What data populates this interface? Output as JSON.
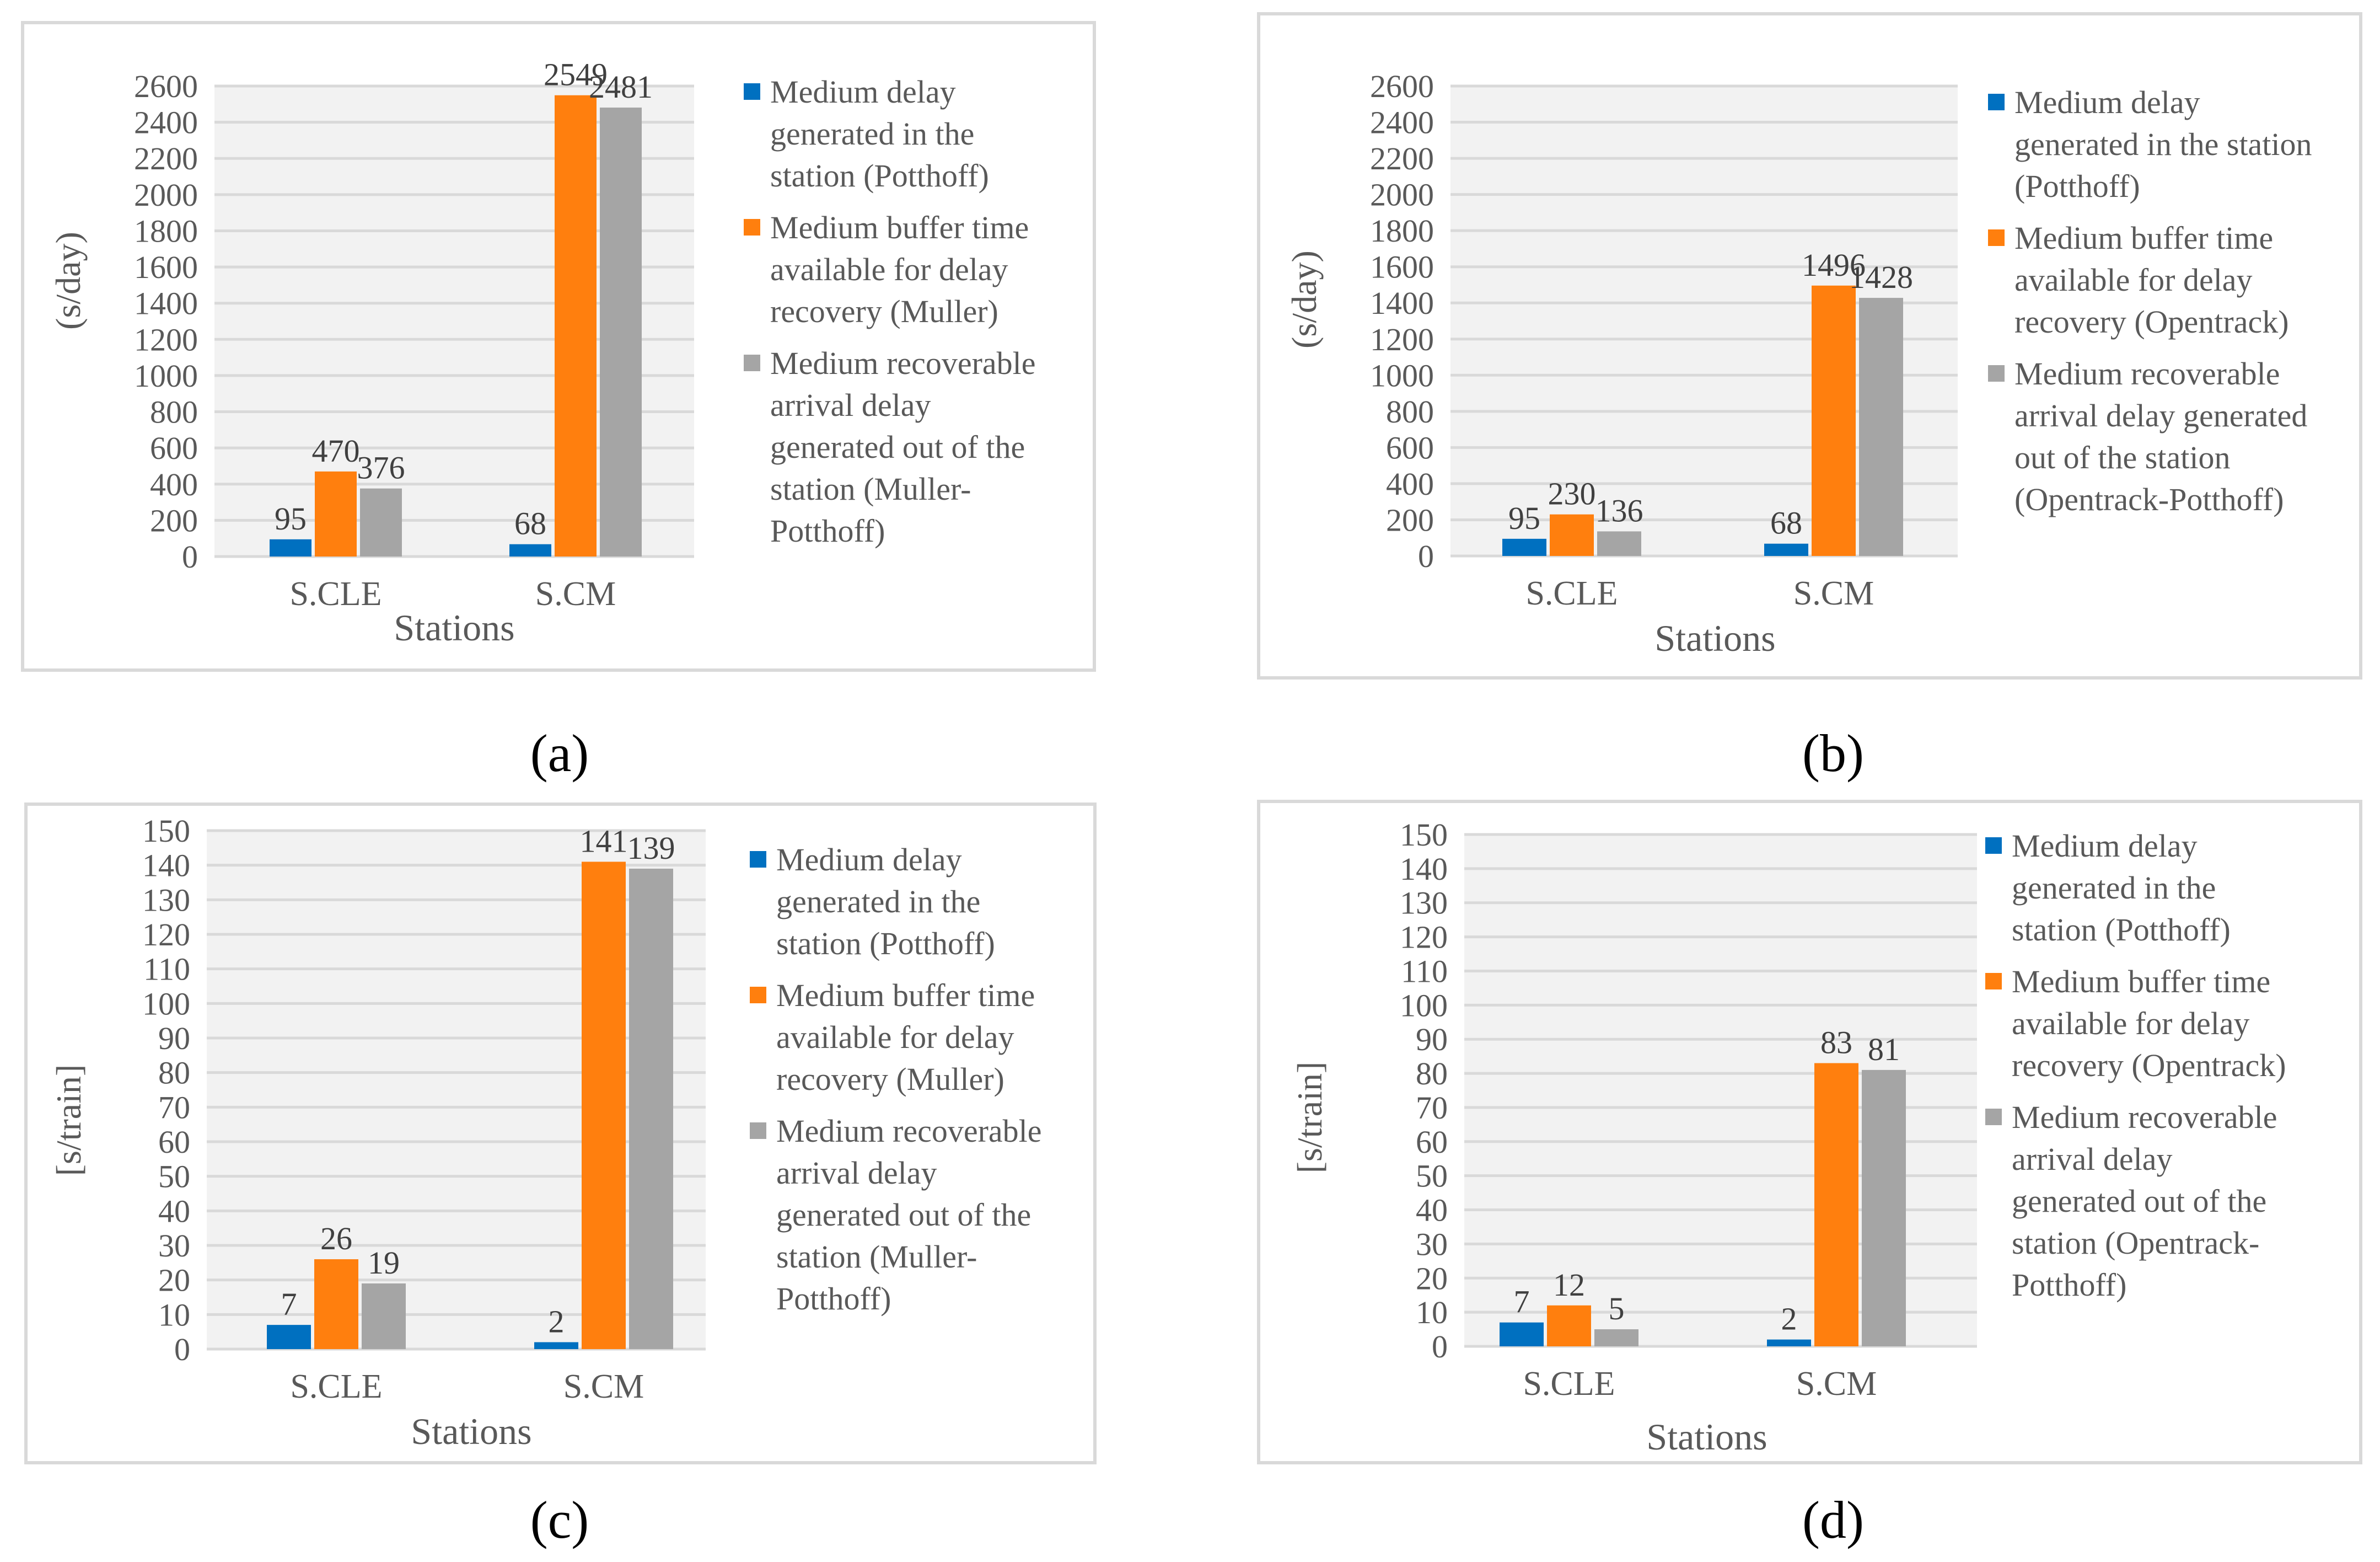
{
  "colors": {
    "series_blue": "#0070c0",
    "series_orange": "#ff7f0e",
    "series_gray": "#a5a5a5",
    "grid": "#d9d9d9",
    "plot_bg": "#f2f2f2"
  },
  "charts": [
    {
      "caption": "(a)",
      "chart_data": {
        "type": "bar",
        "categories": [
          "S.CLE",
          "S.CM"
        ],
        "xlabel": "Stations",
        "ylabel": "(s/day)",
        "ylim": [
          0,
          2600
        ],
        "yticks": [
          "0",
          "200",
          "400",
          "600",
          "800",
          "1000",
          "1200",
          "1400",
          "1600",
          "1800",
          "2000",
          "2200",
          "2400",
          "2600"
        ],
        "grid": true,
        "legend_position": "right",
        "series": [
          {
            "name": "Medium delay generated in the station (Potthoff)",
            "legend_lines": [
              "Medium delay",
              "generated in the",
              "station (Potthoff)"
            ],
            "values": [
              95,
              68
            ]
          },
          {
            "name": "Medium buffer time available for delay recovery (Muller)",
            "legend_lines": [
              "Medium buffer time",
              "available for delay",
              "recovery (Muller)"
            ],
            "values": [
              470,
              2549
            ]
          },
          {
            "name": "Medium recoverable arrival delay generated out of the station (Muller-Potthoff)",
            "legend_lines": [
              "Medium recoverable",
              "arrival delay",
              "generated out of the",
              "station (Muller-",
              "Potthoff)"
            ],
            "values": [
              376,
              2481
            ]
          }
        ]
      }
    },
    {
      "caption": "(b)",
      "chart_data": {
        "type": "bar",
        "categories": [
          "S.CLE",
          "S.CM"
        ],
        "xlabel": "Stations",
        "ylabel": "(s/day)",
        "ylim": [
          0,
          2600
        ],
        "yticks": [
          "0",
          "200",
          "400",
          "600",
          "800",
          "1000",
          "1200",
          "1400",
          "1600",
          "1800",
          "2000",
          "2200",
          "2400",
          "2600"
        ],
        "grid": true,
        "legend_position": "right",
        "series": [
          {
            "name": "Medium delay generated in the station (Potthoff)",
            "legend_lines": [
              "Medium delay",
              "generated in the station",
              "(Potthoff)"
            ],
            "values": [
              95,
              68
            ]
          },
          {
            "name": "Medium buffer time available for delay recovery (Opentrack)",
            "legend_lines": [
              "Medium buffer time",
              "available for delay",
              "recovery (Opentrack)"
            ],
            "values": [
              230,
              1496
            ]
          },
          {
            "name": "Medium recoverable arrival delay generated out of the station (Opentrack-Potthoff)",
            "legend_lines": [
              "Medium recoverable",
              "arrival delay generated",
              "out of the station",
              "(Opentrack-Potthoff)"
            ],
            "values": [
              136,
              1428
            ]
          }
        ]
      }
    },
    {
      "caption": "(c)",
      "chart_data": {
        "type": "bar",
        "categories": [
          "S.CLE",
          "S.CM"
        ],
        "xlabel": "Stations",
        "ylabel": "[s/train]",
        "ylim": [
          0,
          150
        ],
        "yticks": [
          "0",
          "10",
          "20",
          "30",
          "40",
          "50",
          "60",
          "70",
          "80",
          "90",
          "100",
          "110",
          "120",
          "130",
          "140",
          "150"
        ],
        "grid": true,
        "legend_position": "right",
        "series": [
          {
            "name": "Medium delay generated in the station (Potthoff)",
            "legend_lines": [
              "Medium delay",
              "generated in the",
              "station (Potthoff)"
            ],
            "values": [
              7,
              2
            ]
          },
          {
            "name": "Medium buffer time available for delay recovery (Muller)",
            "legend_lines": [
              "Medium buffer time",
              "available for delay",
              "recovery (Muller)"
            ],
            "values": [
              26,
              141
            ]
          },
          {
            "name": "Medium recoverable arrival delay generated out of the station (Muller-Potthoff)",
            "legend_lines": [
              "Medium recoverable",
              "arrival delay",
              "generated out of the",
              "station (Muller-",
              "Potthoff)"
            ],
            "values": [
              19,
              139
            ]
          }
        ]
      }
    },
    {
      "caption": "(d)",
      "chart_data": {
        "type": "bar",
        "categories": [
          "S.CLE",
          "S.CM"
        ],
        "xlabel": "Stations",
        "ylabel": "[s/train]",
        "ylim": [
          0,
          150
        ],
        "yticks": [
          "0",
          "10",
          "20",
          "30",
          "40",
          "50",
          "60",
          "70",
          "80",
          "90",
          "100",
          "110",
          "120",
          "130",
          "140",
          "150"
        ],
        "grid": true,
        "legend_position": "right",
        "series": [
          {
            "name": "Medium delay generated in the station (Potthoff)",
            "legend_lines": [
              "Medium delay",
              "generated in the",
              "station (Potthoff)"
            ],
            "values": [
              7,
              2
            ]
          },
          {
            "name": "Medium buffer time available for delay recovery (Opentrack)",
            "legend_lines": [
              "Medium buffer time",
              "available for delay",
              "recovery (Opentrack)"
            ],
            "values": [
              12,
              83
            ]
          },
          {
            "name": "Medium recoverable arrival delay generated out of the station (Opentrack-Potthoff)",
            "legend_lines": [
              "Medium recoverable",
              "arrival delay",
              "generated out of the",
              "station (Opentrack-",
              "Potthoff)"
            ],
            "values": [
              5,
              81
            ]
          }
        ]
      }
    }
  ]
}
